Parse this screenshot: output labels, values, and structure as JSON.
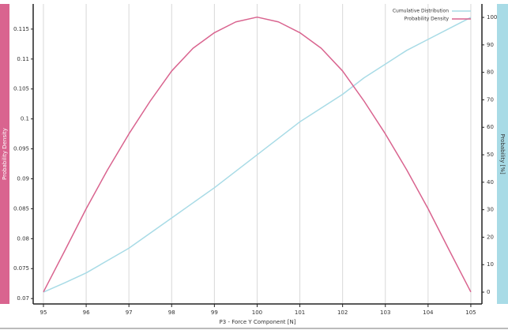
{
  "chart_data": {
    "type": "line",
    "x": [
      95,
      95.5,
      96,
      96.5,
      97,
      97.5,
      98,
      98.5,
      99,
      99.5,
      100,
      100.5,
      101,
      101.5,
      102,
      102.5,
      103,
      103.5,
      104,
      104.5,
      105
    ],
    "series": [
      {
        "name": "Cumulative Distribution",
        "color": "#a8dbe6",
        "axis": "y2",
        "values": [
          0,
          3.4,
          7,
          11.5,
          16,
          21.5,
          27,
          32.5,
          38,
          44,
          50,
          56,
          62,
          67,
          72,
          78,
          83,
          88,
          92,
          96,
          100
        ]
      },
      {
        "name": "Probability Density",
        "color": "#d9648f",
        "values": [
          0.0711,
          0.078,
          0.085,
          0.0915,
          0.0975,
          0.103,
          0.108,
          0.1118,
          0.1144,
          0.1162,
          0.117,
          0.1162,
          0.1144,
          0.1118,
          0.108,
          0.103,
          0.0975,
          0.0915,
          0.085,
          0.078,
          0.0711
        ]
      }
    ],
    "xlabel": "P3 - Force Y Component  [N]",
    "ylabel": "Probability Density",
    "y2label": "Probability [%]",
    "xlim": [
      94.76,
      105.26
    ],
    "xticks": [
      95,
      96,
      97,
      98,
      99,
      100,
      101,
      102,
      103,
      104,
      105
    ],
    "ylim": [
      0.0691,
      0.1192
    ],
    "yticks": [
      0.07,
      0.075,
      0.08,
      0.085,
      0.09,
      0.095,
      0.1,
      0.105,
      0.11,
      0.115
    ],
    "y2lim": [
      -4.3,
      104.9
    ],
    "y2ticks": [
      0,
      10,
      20,
      30,
      40,
      50,
      60,
      70,
      80,
      90,
      100
    ],
    "grid": true,
    "legend": "top-right"
  }
}
